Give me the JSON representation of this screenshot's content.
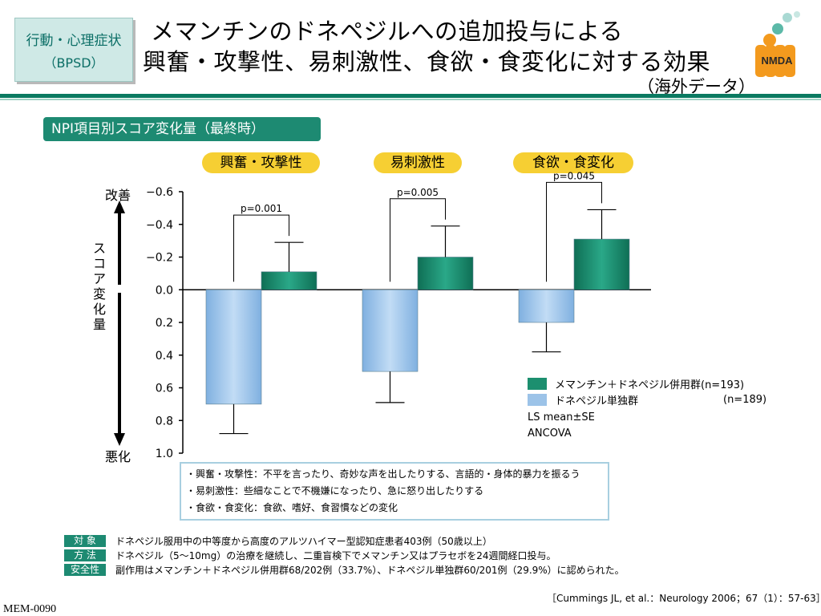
{
  "header": {
    "badge_line1": "行動・心理症状",
    "badge_line2": "（BPSD）",
    "title_line1": "メマンチンのドネペジルへの追加投与による",
    "title_line2": "興奮・攻撃性、易刺激性、食欲・食変化に対する効果",
    "title_note": "（海外データ）",
    "logo_text": "NMDA"
  },
  "section_label": "NPI項目別スコア変化量（最終時）",
  "category_pills": [
    "興奮・攻撃性",
    "易刺激性",
    "食欲・食変化"
  ],
  "axis": {
    "label_vertical": "スコア変化量",
    "top_word": "改善",
    "bottom_word": "悪化"
  },
  "legend": {
    "combo_label": "メマンチン＋ドネペジル併用群(n=193)",
    "mono_label": "ドネペジル単独群",
    "mono_n": "(n=189)",
    "stat_line1": "LS mean±SE",
    "stat_line2": "ANCOVA"
  },
  "chart_data": {
    "type": "bar",
    "categories": [
      "興奮・攻撃性",
      "易刺激性",
      "食欲・食変化"
    ],
    "series": [
      {
        "name": "ドネペジル単独群",
        "color": "#9cc3e8",
        "values": [
          0.7,
          0.5,
          0.2
        ],
        "errors": [
          0.18,
          0.19,
          0.18
        ]
      },
      {
        "name": "メマンチン＋ドネペジル併用群",
        "color": "#1c8f6f",
        "values": [
          -0.11,
          -0.2,
          -0.31
        ],
        "errors": [
          0.18,
          0.19,
          0.18
        ]
      }
    ],
    "y_axis_inverted": true,
    "ylim": [
      -0.6,
      1.0
    ],
    "yticks": [
      "−0.6",
      "−0.4",
      "−0.2",
      "0.0",
      "0.2",
      "0.4",
      "0.6",
      "0.8",
      "1.0"
    ],
    "p_values": [
      "p=0.001",
      "p=0.005",
      "p=0.045"
    ]
  },
  "notes": [
    "・興奮・攻撃性：不平を言ったり、奇妙な声を出したりする、言語的・身体的暴力を振るう",
    "・易刺激性：些細なことで不機嫌になったり、急に怒り出したりする",
    "・食欲・食変化：食欲、嗜好、食習慣などの変化"
  ],
  "info": [
    {
      "tag": "対 象",
      "text": "ドネペジル服用中の中等度から高度のアルツハイマー型認知症患者403例（50歳以上）"
    },
    {
      "tag": "方 法",
      "text": "ドネペジル（5〜10mg）の治療を継続し、二重盲検下でメマンチン又はプラセボを24週間経口投与。"
    },
    {
      "tag": "安全性",
      "text": "副作用はメマンチン＋ドネペジル併用群68/202例（33.7%）、ドネペジル単独群60/201例（29.9%）に認められた。"
    }
  ],
  "citation": "［Cummings JL, et al.：Neurology 2006；67（1）：57-63］",
  "doc_code": "MEM-0090"
}
